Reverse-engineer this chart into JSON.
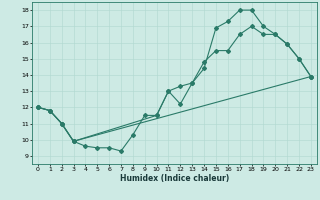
{
  "xlabel": "Humidex (Indice chaleur)",
  "xlim": [
    -0.5,
    23.5
  ],
  "ylim": [
    8.5,
    18.5
  ],
  "xticks": [
    0,
    1,
    2,
    3,
    4,
    5,
    6,
    7,
    8,
    9,
    10,
    11,
    12,
    13,
    14,
    15,
    16,
    17,
    18,
    19,
    20,
    21,
    22,
    23
  ],
  "yticks": [
    9,
    10,
    11,
    12,
    13,
    14,
    15,
    16,
    17,
    18
  ],
  "background_color": "#cdeae4",
  "grid_color": "#b0d8d0",
  "line_color": "#2a7a68",
  "line1_x": [
    0,
    1,
    2,
    3,
    4,
    5,
    6,
    7,
    8,
    9,
    10,
    11,
    12,
    13,
    14,
    15,
    16,
    17,
    18,
    19,
    20,
    21,
    22,
    23
  ],
  "line1_y": [
    12.0,
    11.8,
    11.0,
    9.9,
    9.6,
    9.5,
    9.5,
    9.3,
    10.3,
    11.5,
    11.5,
    13.0,
    13.3,
    13.5,
    14.4,
    16.9,
    17.3,
    18.0,
    18.0,
    17.0,
    16.5,
    15.9,
    15.0,
    13.9
  ],
  "line2_x": [
    0,
    1,
    2,
    3,
    10,
    11,
    12,
    13,
    14,
    15,
    16,
    17,
    18,
    19,
    20,
    21,
    22,
    23
  ],
  "line2_y": [
    12.0,
    11.8,
    11.0,
    9.9,
    11.5,
    13.0,
    12.2,
    13.5,
    14.8,
    15.5,
    15.5,
    16.5,
    17.0,
    16.5,
    16.5,
    15.9,
    15.0,
    13.9
  ],
  "line3_x": [
    0,
    1,
    2,
    3,
    23
  ],
  "line3_y": [
    12.0,
    11.8,
    11.0,
    9.9,
    13.9
  ],
  "xlabel_fontsize": 5.5,
  "xlabel_color": "#1a3a3a",
  "tick_fontsize": 4.5,
  "linewidth": 0.8,
  "markersize": 2.0
}
